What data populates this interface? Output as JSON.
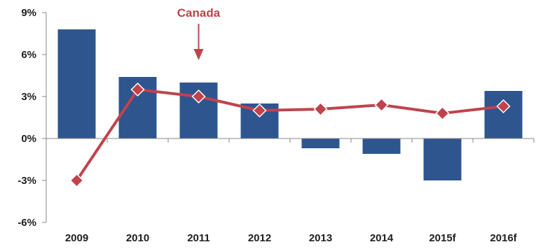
{
  "chart_data": {
    "type": "bar",
    "categories": [
      "2009",
      "2010",
      "2011",
      "2012",
      "2013",
      "2014",
      "2015f",
      "2016f"
    ],
    "ylim": [
      -6,
      9
    ],
    "yticks": [
      -6,
      -3,
      0,
      3,
      6,
      9
    ],
    "ytick_labels": [
      "-6%",
      "-3%",
      "0%",
      "3%",
      "6%",
      "9%"
    ],
    "grid": false,
    "series": [
      {
        "type": "bar",
        "color": "#2e558e",
        "values": [
          7.8,
          4.4,
          4.0,
          2.5,
          -0.7,
          -1.1,
          -3.0,
          3.4
        ]
      },
      {
        "name": "Canada",
        "type": "line",
        "marker": "diamond",
        "color": "#c0434b",
        "values": [
          -3.0,
          3.5,
          3.0,
          2.0,
          2.1,
          2.4,
          1.8,
          2.3
        ]
      }
    ],
    "annotation": {
      "text": "Canada",
      "points_to": "2011",
      "color": "#c0434b"
    },
    "axis_color": "#888888"
  }
}
